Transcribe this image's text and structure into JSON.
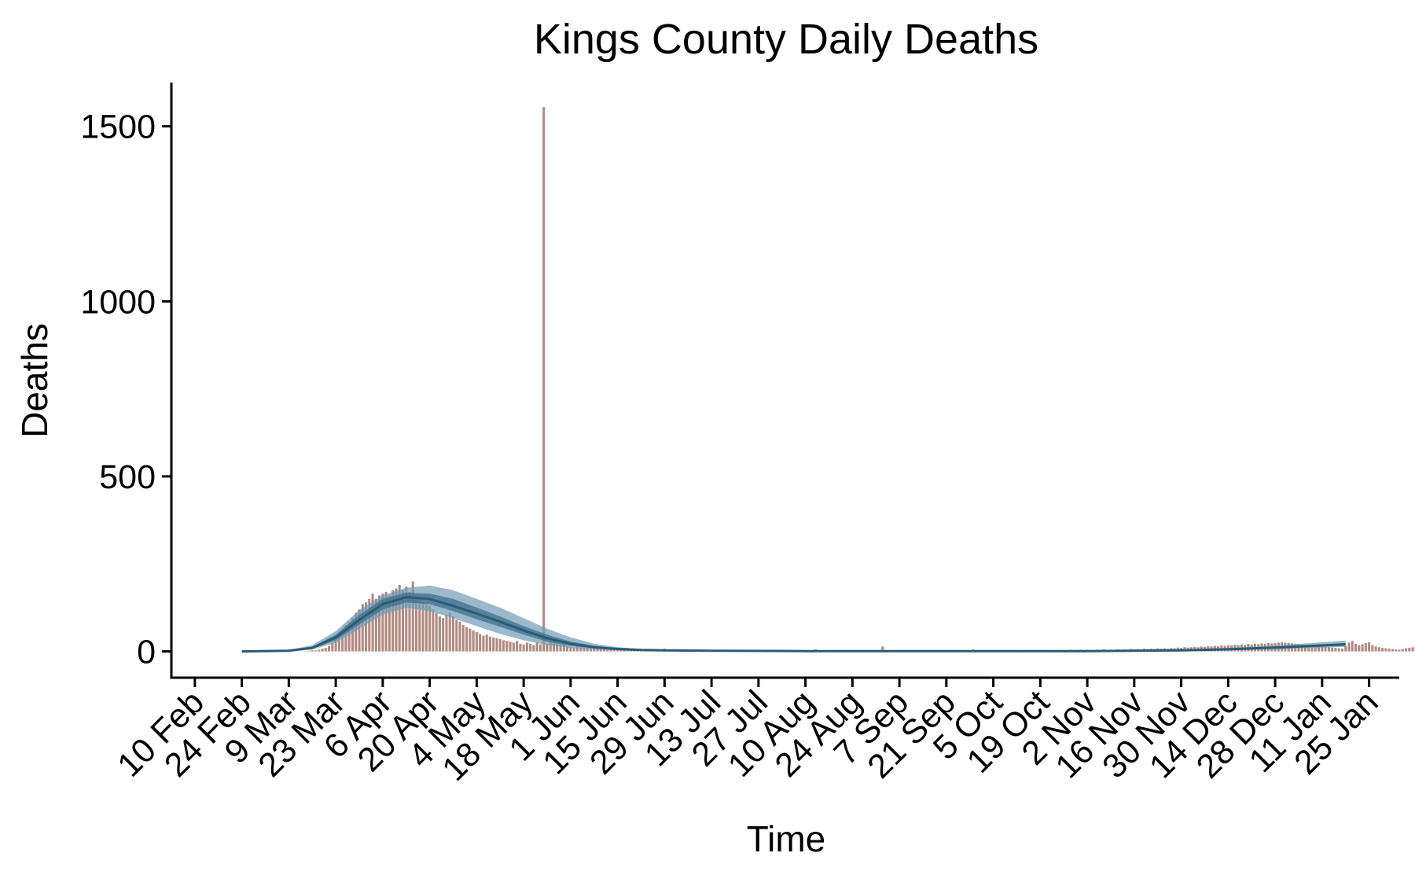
{
  "chart_data": {
    "type": "bar",
    "title": "Kings County Daily Deaths",
    "xlabel": "Time",
    "ylabel": "Deaths",
    "ylim": [
      -75,
      1625
    ],
    "xlim": [
      "2020-02-03",
      "2021-02-03"
    ],
    "grid": false,
    "legend": "none",
    "y_ticks": [
      0,
      500,
      1000,
      1500
    ],
    "x_ticks": [
      {
        "date": "2020-02-10",
        "label": "10 Feb"
      },
      {
        "date": "2020-02-24",
        "label": "24 Feb"
      },
      {
        "date": "2020-03-09",
        "label": "9 Mar"
      },
      {
        "date": "2020-03-23",
        "label": "23 Mar"
      },
      {
        "date": "2020-04-06",
        "label": "6 Apr"
      },
      {
        "date": "2020-04-20",
        "label": "20 Apr"
      },
      {
        "date": "2020-05-04",
        "label": "4 May"
      },
      {
        "date": "2020-05-18",
        "label": "18 May"
      },
      {
        "date": "2020-06-01",
        "label": "1 Jun"
      },
      {
        "date": "2020-06-15",
        "label": "15 Jun"
      },
      {
        "date": "2020-06-29",
        "label": "29 Jun"
      },
      {
        "date": "2020-07-13",
        "label": "13 Jul"
      },
      {
        "date": "2020-07-27",
        "label": "27 Jul"
      },
      {
        "date": "2020-08-10",
        "label": "10 Aug"
      },
      {
        "date": "2020-08-24",
        "label": "24 Aug"
      },
      {
        "date": "2020-09-07",
        "label": "7 Sep"
      },
      {
        "date": "2020-09-21",
        "label": "21 Sep"
      },
      {
        "date": "2020-10-05",
        "label": "5 Oct"
      },
      {
        "date": "2020-10-19",
        "label": "19 Oct"
      },
      {
        "date": "2020-11-02",
        "label": "2 Nov"
      },
      {
        "date": "2020-11-16",
        "label": "16 Nov"
      },
      {
        "date": "2020-11-30",
        "label": "30 Nov"
      },
      {
        "date": "2020-12-14",
        "label": "14 Dec"
      },
      {
        "date": "2020-12-28",
        "label": "28 Dec"
      },
      {
        "date": "2021-01-11",
        "label": "11 Jan"
      },
      {
        "date": "2021-01-25",
        "label": "25 Jan"
      }
    ],
    "colors": {
      "bars": "#b08a82",
      "band_outer": "#6f9bb5",
      "band_inner": "#3d6f8c",
      "median": "#2b5a75"
    },
    "daily_deaths": {
      "start_date": "2020-03-14",
      "values": [
        1,
        2,
        3,
        3,
        5,
        8,
        10,
        15,
        25,
        35,
        45,
        60,
        75,
        85,
        95,
        110,
        120,
        135,
        140,
        150,
        165,
        150,
        160,
        165,
        170,
        160,
        175,
        180,
        190,
        175,
        185,
        170,
        200,
        160,
        150,
        140,
        135,
        130,
        120,
        110,
        100,
        95,
        105,
        110,
        100,
        90,
        85,
        75,
        70,
        65,
        60,
        55,
        50,
        45,
        48,
        42,
        40,
        38,
        35,
        32,
        30,
        28,
        25,
        30,
        22,
        20,
        25,
        22,
        18,
        25,
        20,
        1555,
        22,
        30,
        35,
        25,
        20,
        22,
        15,
        12,
        10,
        15,
        14,
        12,
        18,
        16,
        14,
        10,
        9,
        12,
        8,
        10,
        7,
        9,
        6,
        8,
        5,
        6,
        7,
        5,
        4,
        6,
        5,
        4,
        3,
        5,
        4,
        8,
        3,
        4,
        3,
        2,
        3,
        2,
        3,
        2,
        4,
        2,
        3,
        2,
        2,
        3,
        2,
        3,
        2,
        4,
        2,
        3,
        2,
        2,
        3,
        2,
        2,
        1,
        3,
        2,
        2,
        1,
        2,
        2,
        1,
        2,
        2,
        1,
        2,
        1,
        2,
        1,
        1,
        2,
        1,
        2,
        6,
        1,
        2,
        1,
        1,
        2,
        1,
        1,
        2,
        1,
        1,
        2,
        1,
        1,
        2,
        1,
        2,
        1,
        1,
        3,
        14,
        2,
        1,
        1,
        2,
        1,
        1,
        2,
        1,
        1,
        2,
        1,
        3,
        1,
        2,
        1,
        1,
        2,
        1,
        1,
        2,
        1,
        2,
        3,
        2,
        1,
        2,
        6,
        2,
        2,
        3,
        2,
        2,
        3,
        2,
        2,
        3,
        3,
        2,
        3,
        2,
        3,
        4,
        2,
        3,
        3,
        2,
        3,
        3,
        4,
        3,
        4,
        3,
        4,
        4,
        3,
        5,
        4,
        4,
        5,
        4,
        5,
        4,
        3,
        5,
        4,
        6,
        4,
        5,
        4,
        6,
        5,
        6,
        5,
        7,
        6,
        7,
        6,
        8,
        7,
        8,
        7,
        9,
        8,
        9,
        8,
        10,
        9,
        11,
        10,
        12,
        11,
        12,
        13,
        12,
        14,
        13,
        15,
        14,
        16,
        15,
        17,
        16,
        18,
        17,
        19,
        18,
        20,
        19,
        21,
        20,
        22,
        21,
        23,
        22,
        24,
        23,
        24,
        25,
        26,
        25,
        24,
        23,
        22,
        21,
        20,
        19,
        18,
        17,
        16,
        15,
        14,
        13,
        12,
        11,
        10,
        9,
        8,
        15,
        25,
        30,
        22,
        18,
        20,
        24,
        26,
        18,
        14,
        12,
        10,
        9,
        8,
        7,
        6,
        5,
        7,
        9,
        10,
        12,
        14,
        16,
        18,
        20,
        22,
        24,
        25,
        26,
        28
      ]
    },
    "model_estimate": {
      "dates": [
        "2020-02-24",
        "2020-03-09",
        "2020-03-16",
        "2020-03-23",
        "2020-03-30",
        "2020-04-06",
        "2020-04-13",
        "2020-04-20",
        "2020-04-27",
        "2020-05-04",
        "2020-05-11",
        "2020-05-18",
        "2020-05-25",
        "2020-06-01",
        "2020-06-08",
        "2020-06-15",
        "2020-06-22",
        "2020-06-29",
        "2020-07-13",
        "2020-08-10",
        "2020-09-07",
        "2020-10-05",
        "2020-11-02",
        "2020-11-30",
        "2020-12-14",
        "2020-12-28",
        "2021-01-11",
        "2021-01-18"
      ],
      "median": [
        0,
        2,
        10,
        40,
        90,
        135,
        155,
        150,
        130,
        108,
        85,
        60,
        38,
        22,
        12,
        7,
        4,
        3,
        2,
        1,
        1,
        1,
        1,
        3,
        6,
        11,
        17,
        20
      ],
      "outer_low": [
        0,
        1,
        5,
        25,
        65,
        105,
        125,
        115,
        95,
        72,
        50,
        32,
        18,
        10,
        5,
        3,
        2,
        1,
        0,
        0,
        0,
        0,
        0,
        1,
        3,
        6,
        11,
        13
      ],
      "outer_high": [
        0,
        4,
        18,
        58,
        118,
        160,
        182,
        188,
        175,
        150,
        125,
        95,
        65,
        40,
        22,
        12,
        7,
        4,
        3,
        2,
        2,
        2,
        3,
        6,
        10,
        17,
        26,
        31
      ],
      "inner_low": [
        0,
        1,
        7,
        32,
        77,
        120,
        140,
        135,
        115,
        92,
        70,
        48,
        28,
        16,
        9,
        5,
        3,
        2,
        1,
        1,
        1,
        1,
        1,
        2,
        5,
        9,
        14,
        17
      ],
      "inner_high": [
        0,
        3,
        13,
        48,
        104,
        150,
        168,
        165,
        150,
        125,
        100,
        72,
        48,
        28,
        16,
        9,
        5,
        3,
        2,
        2,
        1,
        1,
        2,
        4,
        8,
        14,
        20,
        24
      ]
    }
  }
}
